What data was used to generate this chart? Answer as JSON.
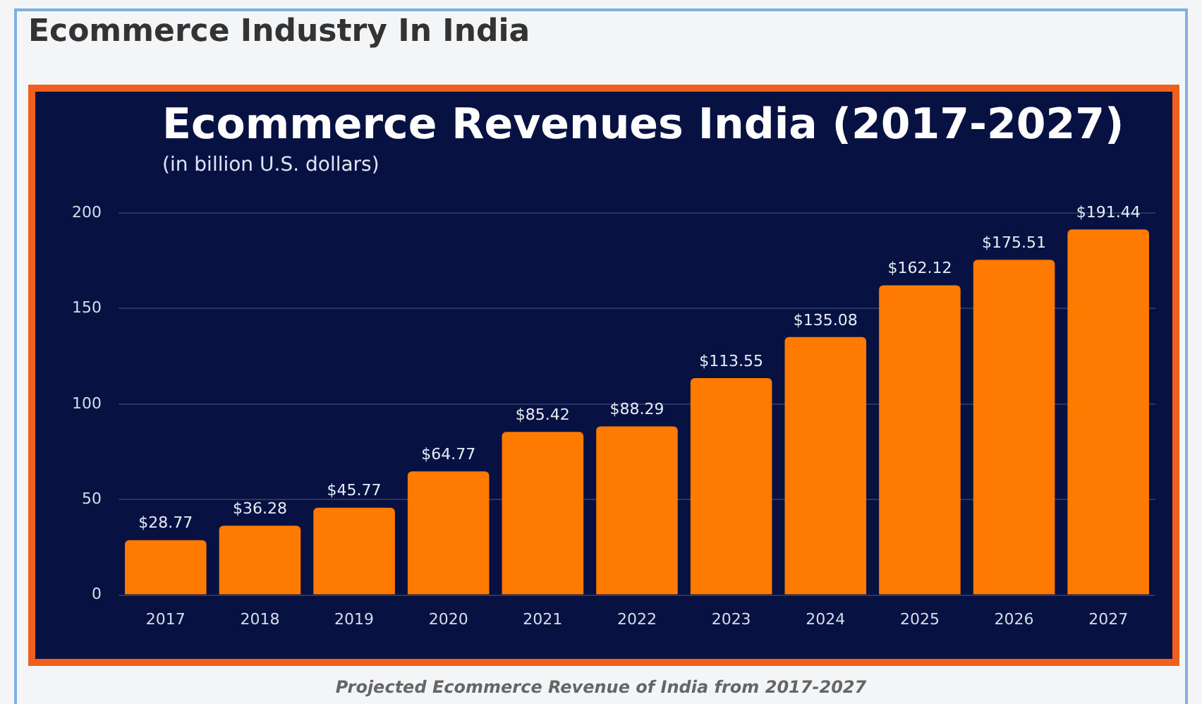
{
  "chart_data": {
    "type": "bar",
    "title": "Ecommerce Revenues India  (2017-2027)",
    "subtitle": "(in billion U.S. dollars)",
    "annotations": [
      "Ecommerce Industry In India",
      "Projected Ecommerce Revenue of India from 2017-2027"
    ],
    "categories": [
      "2017",
      "2018",
      "2019",
      "2020",
      "2021",
      "2022",
      "2023",
      "2024",
      "2025",
      "2026",
      "2027"
    ],
    "values": [
      28.77,
      36.28,
      45.77,
      64.77,
      85.42,
      88.29,
      113.55,
      135.08,
      162.12,
      175.51,
      191.44
    ],
    "value_labels": [
      "$28.77",
      "$36.28",
      "$45.77",
      "$64.77",
      "$85.42",
      "$88.29",
      "$113.55",
      "$135.08",
      "$162.12",
      "$175.51",
      "$191.44"
    ],
    "color": "#ff7a00",
    "ylim": [
      0,
      200
    ],
    "yticks": [
      0,
      50,
      100,
      150,
      200
    ],
    "grid": "y",
    "legend": false
  }
}
